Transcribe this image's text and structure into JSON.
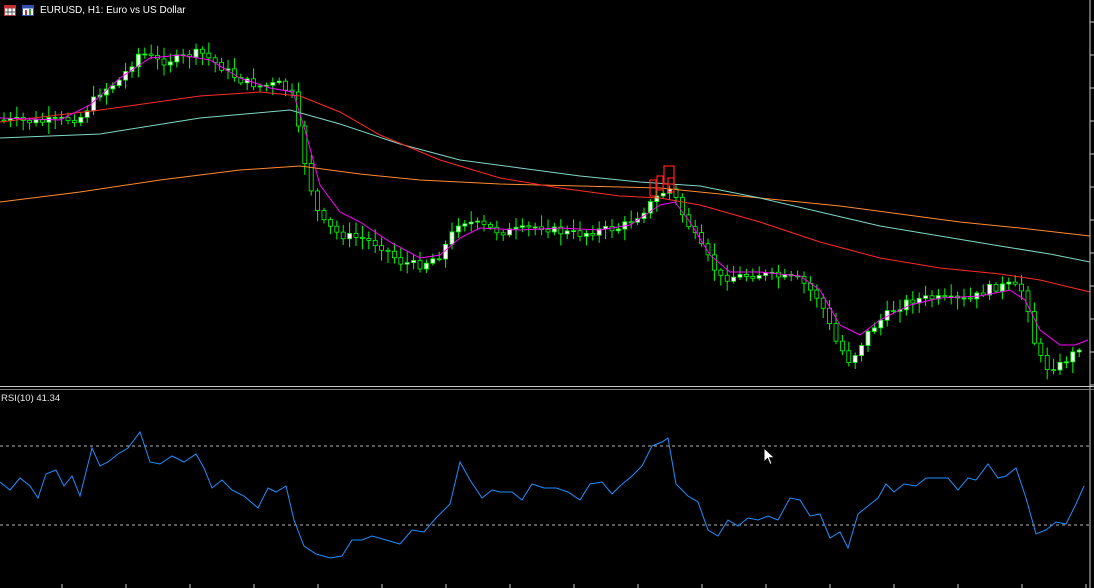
{
  "window": {
    "title": "EURUSD, H1:  Euro vs US Dollar",
    "icons": [
      "calendar-grid-icon",
      "chart-window-icon"
    ]
  },
  "indicator": {
    "label": "RSI(10) 41.34",
    "levels": [
      70,
      30
    ]
  },
  "colors": {
    "background": "#000000",
    "bull_candle": "#ffffff",
    "bear_candle": "#000000",
    "candle_wick": "#00ff00",
    "fast_ma": "#ff00ff",
    "slow_ma_red": "#ff2a2a",
    "cyan_ma": "#7fd8c8",
    "orange_ma": "#ff8a30",
    "rsi_line": "#1e90ff",
    "signal_box": "#ff2020"
  },
  "chart_data": {
    "type": "candlestick",
    "symbol": "EURUSD",
    "timeframe": "H1",
    "candles": [],
    "rsi": []
  }
}
